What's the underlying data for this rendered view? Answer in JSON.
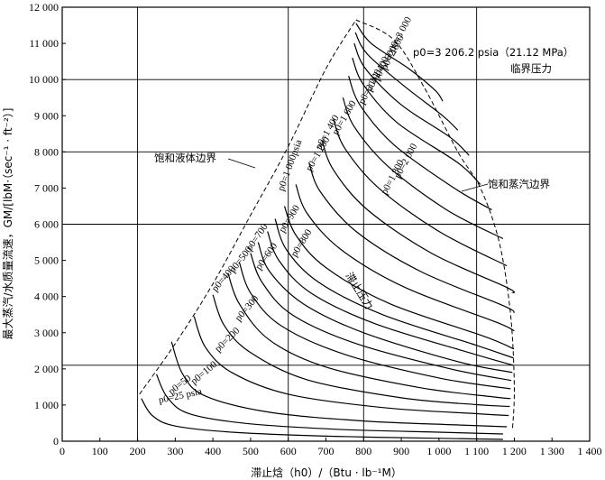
{
  "chart_data": {
    "type": "line",
    "xlabel": "滞止焓（h0）/（Btu · lb⁻¹M）",
    "ylabel": "最大蒸汽/水质量流速，GM/[lbM·（sec⁻¹ · ft⁻²）]",
    "xlim": [
      0,
      1400
    ],
    "ylim": [
      0,
      12000
    ],
    "x_ticks": [
      "0",
      "100",
      "200",
      "300",
      "400",
      "500",
      "600",
      "700",
      "800",
      "900",
      "1 000",
      "1 100",
      "1 200",
      "1 300",
      "1 400"
    ],
    "y_ticks": [
      "0",
      "1 000",
      "2 000",
      "3 000",
      "4 000",
      "5 000",
      "6 000",
      "7 000",
      "8 000",
      "9 000",
      "10 000",
      "11 000",
      "12 000"
    ],
    "x_gridlines": [
      200,
      600,
      800,
      1100
    ],
    "y_gridlines": [
      2100,
      6000,
      8000,
      10000
    ],
    "annotations": {
      "critical": "p0=3 206.2 psia（21.12 MPa）",
      "critical_2": "临界压力",
      "sat_liquid": "饱和液体边界",
      "sat_vapor": "饱和蒸汽边界",
      "stagnation": "滞止压力"
    },
    "saturated_liquid_boundary": [
      [
        205,
        1300
      ],
      [
        300,
        2700
      ],
      [
        400,
        4350
      ],
      [
        500,
        6250
      ],
      [
        600,
        8150
      ],
      [
        700,
        10300
      ],
      [
        780,
        11650
      ]
    ],
    "saturated_vapor_boundary": [
      [
        780,
        11650
      ],
      [
        880,
        11100
      ],
      [
        960,
        9800
      ],
      [
        1050,
        8000
      ],
      [
        1110,
        7000
      ],
      [
        1160,
        5500
      ],
      [
        1190,
        3500
      ],
      [
        1200,
        1500
      ],
      [
        1195,
        300
      ]
    ],
    "series": [
      {
        "name": "p0=25 psia",
        "p0": 25,
        "values": [
          [
            210,
            1180
          ],
          [
            240,
            700
          ],
          [
            300,
            420
          ],
          [
            450,
            250
          ],
          [
            700,
            140
          ],
          [
            1000,
            80
          ],
          [
            1170,
            50
          ]
        ]
      },
      {
        "name": "p0=50",
        "p0": 50,
        "values": [
          [
            250,
            1850
          ],
          [
            280,
            1200
          ],
          [
            340,
            750
          ],
          [
            500,
            480
          ],
          [
            750,
            320
          ],
          [
            1000,
            250
          ],
          [
            1170,
            200
          ]
        ]
      },
      {
        "name": "p0=100",
        "p0": 100,
        "values": [
          [
            290,
            2750
          ],
          [
            320,
            1850
          ],
          [
            380,
            1250
          ],
          [
            550,
            800
          ],
          [
            800,
            560
          ],
          [
            1050,
            450
          ],
          [
            1180,
            400
          ]
        ]
      },
      {
        "name": "p0=200",
        "p0": 200,
        "values": [
          [
            350,
            3450
          ],
          [
            380,
            2600
          ],
          [
            450,
            1900
          ],
          [
            600,
            1300
          ],
          [
            850,
            930
          ],
          [
            1100,
            760
          ],
          [
            1185,
            710
          ]
        ]
      },
      {
        "name": "p0=300",
        "p0": 300,
        "values": [
          [
            400,
            4050
          ],
          [
            430,
            3200
          ],
          [
            500,
            2450
          ],
          [
            650,
            1700
          ],
          [
            900,
            1200
          ],
          [
            1100,
            1010
          ],
          [
            1188,
            960
          ]
        ]
      },
      {
        "name": "p0=400",
        "p0": 400,
        "values": [
          [
            440,
            4650
          ],
          [
            470,
            3800
          ],
          [
            550,
            2800
          ],
          [
            700,
            2050
          ],
          [
            950,
            1480
          ],
          [
            1150,
            1220
          ],
          [
            1190,
            1180
          ]
        ]
      },
      {
        "name": "p0=500",
        "p0": 500,
        "values": [
          [
            470,
            4950
          ],
          [
            500,
            4100
          ],
          [
            580,
            3200
          ],
          [
            750,
            2400
          ],
          [
            1000,
            1750
          ],
          [
            1190,
            1450
          ]
        ]
      },
      {
        "name": "p0=600",
        "p0": 600,
        "values": [
          [
            500,
            5200
          ],
          [
            530,
            4400
          ],
          [
            610,
            3500
          ],
          [
            780,
            2700
          ],
          [
            1030,
            2000
          ],
          [
            1192,
            1680
          ]
        ]
      },
      {
        "name": "p0=700",
        "p0": 700,
        "values": [
          [
            520,
            5500
          ],
          [
            550,
            4700
          ],
          [
            640,
            3800
          ],
          [
            800,
            3000
          ],
          [
            1050,
            2200
          ],
          [
            1195,
            1900
          ]
        ]
      },
      {
        "name": "p0=800",
        "p0": 800,
        "values": [
          [
            545,
            5800
          ],
          [
            575,
            5000
          ],
          [
            660,
            4100
          ],
          [
            830,
            3250
          ],
          [
            1080,
            2450
          ],
          [
            1197,
            2100
          ]
        ]
      },
      {
        "name": "p0=900",
        "p0": 900,
        "values": [
          [
            565,
            6150
          ],
          [
            595,
            5300
          ],
          [
            680,
            4400
          ],
          [
            850,
            3500
          ],
          [
            1100,
            2650
          ],
          [
            1198,
            2300
          ]
        ]
      },
      {
        "name": "p0=1 000psia",
        "p0": 1000,
        "values": [
          [
            590,
            6500
          ],
          [
            620,
            5700
          ],
          [
            700,
            4800
          ],
          [
            870,
            3800
          ],
          [
            1120,
            2900
          ],
          [
            1199,
            2550
          ]
        ]
      },
      {
        "name": "p0=1 200",
        "p0": 1200,
        "values": [
          [
            620,
            7100
          ],
          [
            650,
            6300
          ],
          [
            740,
            5300
          ],
          [
            910,
            4250
          ],
          [
            1150,
            3300
          ],
          [
            1200,
            3050
          ]
        ]
      },
      {
        "name": "p0=1 400",
        "p0": 1400,
        "values": [
          [
            655,
            7700
          ],
          [
            685,
            6900
          ],
          [
            780,
            5800
          ],
          [
            950,
            4700
          ],
          [
            1170,
            3750
          ],
          [
            1200,
            3550
          ]
        ]
      },
      {
        "name": "p0=1 600",
        "p0": 1600,
        "values": [
          [
            690,
            8300
          ],
          [
            720,
            7500
          ],
          [
            810,
            6400
          ],
          [
            980,
            5200
          ],
          [
            1180,
            4250
          ],
          [
            1195,
            4100
          ]
        ]
      },
      {
        "name": "p0=1 800",
        "p0": 1800,
        "values": [
          [
            720,
            8900
          ],
          [
            750,
            8100
          ],
          [
            840,
            7000
          ],
          [
            1000,
            5800
          ],
          [
            1180,
            4850
          ]
        ]
      },
      {
        "name": "p0=2 000",
        "p0": 2000,
        "values": [
          [
            745,
            9500
          ],
          [
            775,
            8700
          ],
          [
            865,
            7600
          ],
          [
            1020,
            6400
          ],
          [
            1170,
            5600
          ]
        ]
      },
      {
        "name": "p0=2 200",
        "p0": 2200,
        "values": [
          [
            760,
            10100
          ],
          [
            790,
            9300
          ],
          [
            880,
            8200
          ],
          [
            1040,
            7000
          ],
          [
            1140,
            6400
          ]
        ]
      },
      {
        "name": "p0=2 400",
        "p0": 2400,
        "values": [
          [
            770,
            10600
          ],
          [
            800,
            9850
          ],
          [
            890,
            8800
          ],
          [
            1050,
            7700
          ],
          [
            1110,
            7100
          ]
        ]
      },
      {
        "name": "p0=2 600",
        "p0": 2600,
        "values": [
          [
            775,
            11000
          ],
          [
            805,
            10300
          ],
          [
            900,
            9300
          ],
          [
            1030,
            8400
          ],
          [
            1080,
            7900
          ]
        ]
      },
      {
        "name": "p0=2 800",
        "p0": 2800,
        "values": [
          [
            778,
            11300
          ],
          [
            810,
            10700
          ],
          [
            910,
            9800
          ],
          [
            1010,
            9000
          ],
          [
            1050,
            8600
          ]
        ]
      },
      {
        "name": "p0=3 000",
        "p0": 3000,
        "values": [
          [
            780,
            11550
          ],
          [
            820,
            11000
          ],
          [
            920,
            10300
          ],
          [
            990,
            9700
          ],
          [
            1010,
            9400
          ]
        ]
      }
    ],
    "curve_labels": [
      {
        "text": "p0=25 psia",
        "at": [
          258,
          1050
        ],
        "angle": -12
      },
      {
        "text": "p0=50",
        "at": [
          290,
          1280
        ],
        "angle": -38
      },
      {
        "text": "p0=100",
        "at": [
          350,
          1560
        ],
        "angle": -40
      },
      {
        "text": "p0=200",
        "at": [
          415,
          2450
        ],
        "angle": -45
      },
      {
        "text": "p0=300",
        "at": [
          470,
          3300
        ],
        "angle": -50
      },
      {
        "text": "p0=400",
        "at": [
          408,
          4120
        ],
        "angle": -50
      },
      {
        "text": "p0=500",
        "at": [
          455,
          4640
        ],
        "angle": -52
      },
      {
        "text": "p0=600",
        "at": [
          525,
          4720
        ],
        "angle": -55
      },
      {
        "text": "p0=700",
        "at": [
          500,
          5250
        ],
        "angle": -55
      },
      {
        "text": "p0=800",
        "at": [
          620,
          5080
        ],
        "angle": -58
      },
      {
        "text": "p0=900",
        "at": [
          588,
          5750
        ],
        "angle": -58
      },
      {
        "text": "p0=1 000psia",
        "at": [
          587,
          6900
        ],
        "angle": -70
      },
      {
        "text": "p0=1 200",
        "at": [
          660,
          7450
        ],
        "angle": -60
      },
      {
        "text": "p0=1 400",
        "at": [
          685,
          8050
        ],
        "angle": -60
      },
      {
        "text": "p0=1 600",
        "at": [
          730,
          8450
        ],
        "angle": -60
      },
      {
        "text": "p0=1 800",
        "at": [
          860,
          6800
        ],
        "angle": -62
      },
      {
        "text": "p0=2 000",
        "at": [
          895,
          7250
        ],
        "angle": -62
      },
      {
        "text": "p0=2 200",
        "at": [
          800,
          9300
        ],
        "angle": -62
      },
      {
        "text": "p0=2 400",
        "at": [
          820,
          9650
        ],
        "angle": -62
      },
      {
        "text": "p0=2 600",
        "at": [
          840,
          9950
        ],
        "angle": -62
      },
      {
        "text": "p0=2 800",
        "at": [
          860,
          10250
        ],
        "angle": -62
      },
      {
        "text": "p0=3 000",
        "at": [
          880,
          10750
        ],
        "angle": -62
      }
    ]
  }
}
